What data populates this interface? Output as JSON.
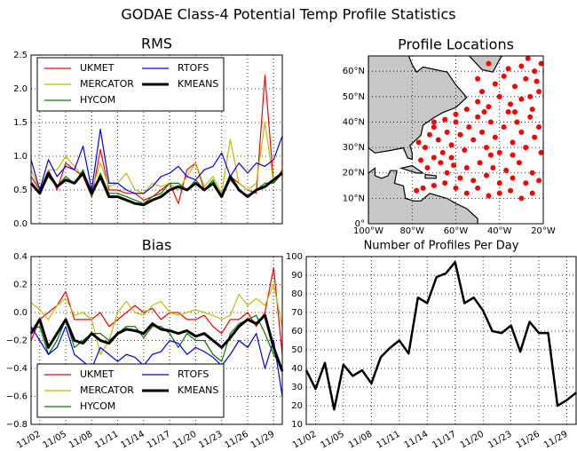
{
  "title": "GODAE Class-4 Potential Temp Profile Statistics",
  "chart_data": [
    {
      "type": "line",
      "title": "RMS",
      "legend": "upper left",
      "grid": true,
      "ylim": [
        0,
        2.5
      ],
      "yticks": [
        {
          "value": 0,
          "label": "0.0"
        },
        {
          "value": 0.5,
          "label": "0.5"
        },
        {
          "value": 1,
          "label": "1.0"
        },
        {
          "value": 1.5,
          "label": "1.5"
        },
        {
          "value": 2,
          "label": "2.0"
        },
        {
          "value": 2.5,
          "label": "2.5"
        }
      ],
      "series": [
        {
          "name": "UKMET",
          "color": "#ff0000",
          "values": [
            0.7,
            0.5,
            0.8,
            0.5,
            0.9,
            0.8,
            0.7,
            0.4,
            1.1,
            0.5,
            0.5,
            0.45,
            0.45,
            0.35,
            0.4,
            0.5,
            0.6,
            0.3,
            0.8,
            0.9,
            0.5,
            0.6,
            0.4,
            0.7,
            0.6,
            0.5,
            0.45,
            2.2,
            0.6,
            0.8
          ]
        },
        {
          "name": "MERCATOR",
          "color": "#bfbf00",
          "values": [
            0.8,
            0.5,
            0.8,
            0.8,
            1.0,
            0.85,
            0.7,
            0.5,
            0.9,
            0.55,
            0.6,
            0.75,
            0.5,
            0.45,
            0.6,
            0.55,
            0.6,
            0.5,
            0.7,
            0.9,
            0.55,
            0.7,
            0.45,
            1.25,
            0.6,
            0.5,
            0.6,
            1.5,
            0.6,
            0.75
          ]
        },
        {
          "name": "HYCOM",
          "color": "#008000",
          "values": [
            0.6,
            0.45,
            0.7,
            0.55,
            0.7,
            0.6,
            0.8,
            0.4,
            0.75,
            0.45,
            0.45,
            0.4,
            0.35,
            0.3,
            0.4,
            0.45,
            0.6,
            0.6,
            0.5,
            0.65,
            0.5,
            0.65,
            0.4,
            0.65,
            0.5,
            0.4,
            0.5,
            0.6,
            0.6,
            0.75
          ]
        },
        {
          "name": "RTOFS",
          "color": "#0000ff",
          "values": [
            0.95,
            0.5,
            0.95,
            0.7,
            0.85,
            0.8,
            1.15,
            0.5,
            1.4,
            0.6,
            0.6,
            0.5,
            0.45,
            0.45,
            0.55,
            0.7,
            0.75,
            0.85,
            0.7,
            0.65,
            0.8,
            0.85,
            1.05,
            0.7,
            0.9,
            0.75,
            0.9,
            0.85,
            0.95,
            1.3
          ]
        },
        {
          "name": "KMEANS",
          "color": "#000000",
          "width": 3,
          "values": [
            0.6,
            0.45,
            0.75,
            0.55,
            0.65,
            0.6,
            0.75,
            0.45,
            0.7,
            0.4,
            0.4,
            0.35,
            0.3,
            0.28,
            0.35,
            0.4,
            0.5,
            0.55,
            0.5,
            0.6,
            0.5,
            0.6,
            0.4,
            0.7,
            0.5,
            0.4,
            0.5,
            0.55,
            0.65,
            0.75
          ]
        }
      ]
    },
    {
      "type": "scatter",
      "title": "Profile Locations",
      "color": "#ff0000",
      "grid": true,
      "xlim": [
        -100,
        -20
      ],
      "ylim": [
        0,
        66
      ],
      "xticks": [
        {
          "value": -100,
          "label": "100°W"
        },
        {
          "value": -80,
          "label": "80°W"
        },
        {
          "value": -60,
          "label": "60°W"
        },
        {
          "value": -40,
          "label": "40°W"
        },
        {
          "value": -20,
          "label": "20°W"
        }
      ],
      "yticks": [
        {
          "value": 0,
          "label": "0°"
        },
        {
          "value": 10,
          "label": "10°N"
        },
        {
          "value": 20,
          "label": "20°N"
        },
        {
          "value": 30,
          "label": "30°N"
        },
        {
          "value": 40,
          "label": "40°N"
        },
        {
          "value": 50,
          "label": "50°N"
        },
        {
          "value": 60,
          "label": "60°N"
        }
      ],
      "x": [
        -77,
        -74,
        -72,
        -70,
        -68,
        -66,
        -64,
        -62,
        -60,
        -58,
        -56,
        -54,
        -52,
        -50,
        -48,
        -46,
        -44,
        -42,
        -40,
        -38,
        -36,
        -34,
        -32,
        -30,
        -28,
        -26,
        -24,
        -22,
        -21,
        -76,
        -73,
        -70,
        -67,
        -64,
        -61,
        -58,
        -55,
        -52,
        -49,
        -46,
        -43,
        -40,
        -37,
        -34,
        -31,
        -28,
        -25,
        -22,
        -60,
        -55,
        -50,
        -45,
        -40,
        -35,
        -30,
        -25,
        -65,
        -70,
        -75,
        -78,
        -50,
        -45,
        -40,
        -35,
        -30,
        -25,
        -22,
        -48,
        -42,
        -38,
        -33,
        -28,
        -24,
        -21,
        -30,
        -36,
        -27,
        -45,
        -50,
        -55,
        -60,
        -65,
        -70,
        -47,
        -33,
        -26,
        -23,
        -34,
        -44,
        -62
      ],
      "y": [
        32,
        30,
        35,
        38,
        33,
        28,
        36,
        31,
        40,
        35,
        29,
        38,
        33,
        42,
        36,
        30,
        40,
        34,
        28,
        38,
        44,
        32,
        40,
        36,
        30,
        42,
        34,
        38,
        28,
        25,
        22,
        26,
        24,
        20,
        23,
        18,
        22,
        17,
        24,
        19,
        22,
        16,
        21,
        18,
        24,
        16,
        20,
        17,
        14,
        12,
        14,
        11,
        12,
        13,
        10,
        12,
        16,
        15,
        14,
        13,
        48,
        46,
        50,
        47,
        49,
        45,
        52,
        52,
        55,
        58,
        54,
        57,
        60,
        63,
        62,
        61,
        65,
        63,
        57,
        45,
        43,
        41,
        40,
        44,
        44,
        50,
        56,
        27,
        27,
        26
      ]
    },
    {
      "type": "line",
      "title": "Bias",
      "legend": "lower left",
      "grid": true,
      "categories": [
        null,
        "11/02",
        null,
        null,
        "11/05",
        null,
        null,
        "11/08",
        null,
        null,
        "11/11",
        null,
        null,
        "11/14",
        null,
        null,
        "11/17",
        null,
        null,
        "11/20",
        null,
        null,
        "11/23",
        null,
        null,
        "11/26",
        null,
        null,
        "11/29",
        null
      ],
      "ylim": [
        -0.8,
        0.4
      ],
      "yticks": [
        {
          "value": -0.8,
          "label": "−0.8"
        },
        {
          "value": -0.6,
          "label": "−0.6"
        },
        {
          "value": -0.4,
          "label": "−0.4"
        },
        {
          "value": -0.2,
          "label": "−0.2"
        },
        {
          "value": 0,
          "label": "0.0"
        },
        0.2,
        0.4
      ],
      "series": [
        {
          "name": "UKMET",
          "color": "#ff0000",
          "values": [
            -0.2,
            -0.05,
            0.0,
            0.05,
            0.15,
            -0.05,
            -0.05,
            -0.05,
            0.0,
            -0.1,
            -0.05,
            0.0,
            0.05,
            0.0,
            0.03,
            -0.05,
            0.0,
            0.0,
            -0.05,
            -0.05,
            -0.02,
            -0.1,
            -0.15,
            -0.05,
            -0.05,
            0.0,
            -0.1,
            0.0,
            0.32,
            -0.3
          ]
        },
        {
          "name": "MERCATOR",
          "color": "#bfbf00",
          "values": [
            0.07,
            0.02,
            -0.05,
            0.05,
            0.1,
            -0.02,
            0.0,
            -0.05,
            -0.3,
            -0.2,
            0.0,
            0.08,
            0.0,
            -0.02,
            0.05,
            0.08,
            0.0,
            -0.02,
            0.0,
            0.02,
            0.0,
            -0.02,
            -0.05,
            -0.02,
            0.13,
            0.05,
            0.1,
            0.05,
            0.2,
            -0.1
          ]
        },
        {
          "name": "HYCOM",
          "color": "#008000",
          "values": [
            -0.12,
            -0.1,
            -0.3,
            -0.2,
            -0.05,
            -0.25,
            -0.2,
            -0.15,
            -0.15,
            -0.2,
            -0.15,
            -0.1,
            -0.1,
            -0.18,
            -0.1,
            -0.1,
            -0.15,
            -0.25,
            -0.15,
            -0.2,
            -0.2,
            -0.3,
            -0.35,
            -0.15,
            -0.08,
            -0.05,
            -0.02,
            -0.15,
            -0.3,
            -0.4
          ]
        },
        {
          "name": "RTOFS",
          "color": "#0000ff",
          "values": [
            -0.1,
            -0.2,
            -0.3,
            -0.25,
            -0.1,
            -0.3,
            -0.35,
            -0.4,
            -0.25,
            -0.3,
            -0.35,
            -0.3,
            -0.32,
            -0.38,
            -0.3,
            -0.28,
            -0.2,
            -0.22,
            -0.3,
            -0.25,
            -0.28,
            -0.32,
            -0.38,
            -0.3,
            -0.2,
            -0.25,
            -0.15,
            -0.4,
            -0.2,
            -0.6
          ]
        },
        {
          "name": "KMEANS",
          "color": "#000000",
          "width": 3,
          "values": [
            -0.15,
            -0.05,
            -0.25,
            -0.15,
            -0.05,
            -0.2,
            -0.22,
            -0.15,
            -0.2,
            -0.22,
            -0.15,
            -0.12,
            -0.13,
            -0.15,
            -0.08,
            -0.12,
            -0.13,
            -0.15,
            -0.13,
            -0.17,
            -0.15,
            -0.2,
            -0.25,
            -0.18,
            -0.1,
            -0.05,
            -0.08,
            -0.02,
            -0.25,
            -0.42
          ]
        }
      ]
    },
    {
      "type": "line",
      "title": "Number of Profiles Per Day",
      "grid": true,
      "categories": [
        null,
        "11/02",
        null,
        null,
        "11/05",
        null,
        null,
        "11/08",
        null,
        null,
        "11/11",
        null,
        null,
        "11/14",
        null,
        null,
        "11/17",
        null,
        null,
        "11/20",
        null,
        null,
        "11/23",
        null,
        null,
        "11/26",
        null,
        null,
        "11/29",
        null
      ],
      "ylim": [
        10,
        100
      ],
      "yticks": [
        10,
        20,
        30,
        40,
        50,
        60,
        70,
        80,
        90,
        100
      ],
      "series": [
        {
          "color": "#000000",
          "width": 2.5,
          "values": [
            39,
            29,
            43,
            18,
            42,
            36,
            39,
            32,
            46,
            51,
            55,
            48,
            78,
            75,
            89,
            91,
            97,
            75,
            78,
            71,
            60,
            59,
            63,
            49,
            65,
            59,
            59,
            20,
            23,
            27
          ]
        }
      ]
    }
  ]
}
